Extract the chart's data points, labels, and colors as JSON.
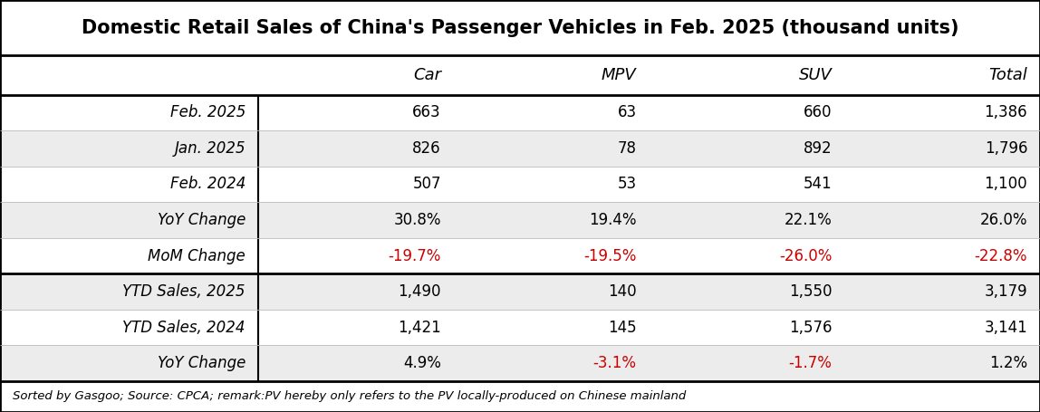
{
  "title": "Domestic Retail Sales of China's Passenger Vehicles in Feb. 2025 (thousand units)",
  "columns": [
    "",
    "Car",
    "MPV",
    "SUV",
    "Total"
  ],
  "rows": [
    {
      "label": "Feb. 2025",
      "values": [
        "663",
        "63",
        "660",
        "1,386"
      ],
      "bg": "#ffffff",
      "label_italic": true,
      "label_bold": false,
      "label_indent": false,
      "value_colors": [
        "#000000",
        "#000000",
        "#000000",
        "#000000"
      ]
    },
    {
      "label": "Jan. 2025",
      "values": [
        "826",
        "78",
        "892",
        "1,796"
      ],
      "bg": "#ececec",
      "label_italic": true,
      "label_bold": false,
      "label_indent": false,
      "value_colors": [
        "#000000",
        "#000000",
        "#000000",
        "#000000"
      ]
    },
    {
      "label": "Feb. 2024",
      "values": [
        "507",
        "53",
        "541",
        "1,100"
      ],
      "bg": "#ffffff",
      "label_italic": true,
      "label_bold": false,
      "label_indent": false,
      "value_colors": [
        "#000000",
        "#000000",
        "#000000",
        "#000000"
      ]
    },
    {
      "label": "YoY Change",
      "values": [
        "30.8%",
        "19.4%",
        "22.1%",
        "26.0%"
      ],
      "bg": "#ececec",
      "label_italic": true,
      "label_bold": false,
      "label_indent": true,
      "value_colors": [
        "#000000",
        "#000000",
        "#000000",
        "#000000"
      ]
    },
    {
      "label": "MoM Change",
      "values": [
        "-19.7%",
        "-19.5%",
        "-26.0%",
        "-22.8%"
      ],
      "bg": "#ffffff",
      "label_italic": true,
      "label_bold": false,
      "label_indent": true,
      "value_colors": [
        "#cc0000",
        "#cc0000",
        "#cc0000",
        "#cc0000"
      ]
    },
    {
      "label": "YTD Sales, 2025",
      "values": [
        "1,490",
        "140",
        "1,550",
        "3,179"
      ],
      "bg": "#ececec",
      "label_italic": true,
      "label_bold": false,
      "label_indent": false,
      "value_colors": [
        "#000000",
        "#000000",
        "#000000",
        "#000000"
      ]
    },
    {
      "label": "YTD Sales, 2024",
      "values": [
        "1,421",
        "145",
        "1,576",
        "3,141"
      ],
      "bg": "#ffffff",
      "label_italic": true,
      "label_bold": false,
      "label_indent": false,
      "value_colors": [
        "#000000",
        "#000000",
        "#000000",
        "#000000"
      ]
    },
    {
      "label": "YoY Change",
      "values": [
        "4.9%",
        "-3.1%",
        "-1.7%",
        "1.2%"
      ],
      "bg": "#ececec",
      "label_italic": true,
      "label_bold": false,
      "label_indent": true,
      "value_colors": [
        "#000000",
        "#cc0000",
        "#cc0000",
        "#000000"
      ]
    }
  ],
  "footer": "Sorted by Gasgoo; Source: CPCA; remark:PV hereby only refers to the PV locally-produced on Chinese mainland",
  "section_divider_before_rows": [
    5
  ],
  "title_fontsize": 15,
  "col_header_fontsize": 13,
  "row_fontsize": 12,
  "footer_fontsize": 9.5
}
